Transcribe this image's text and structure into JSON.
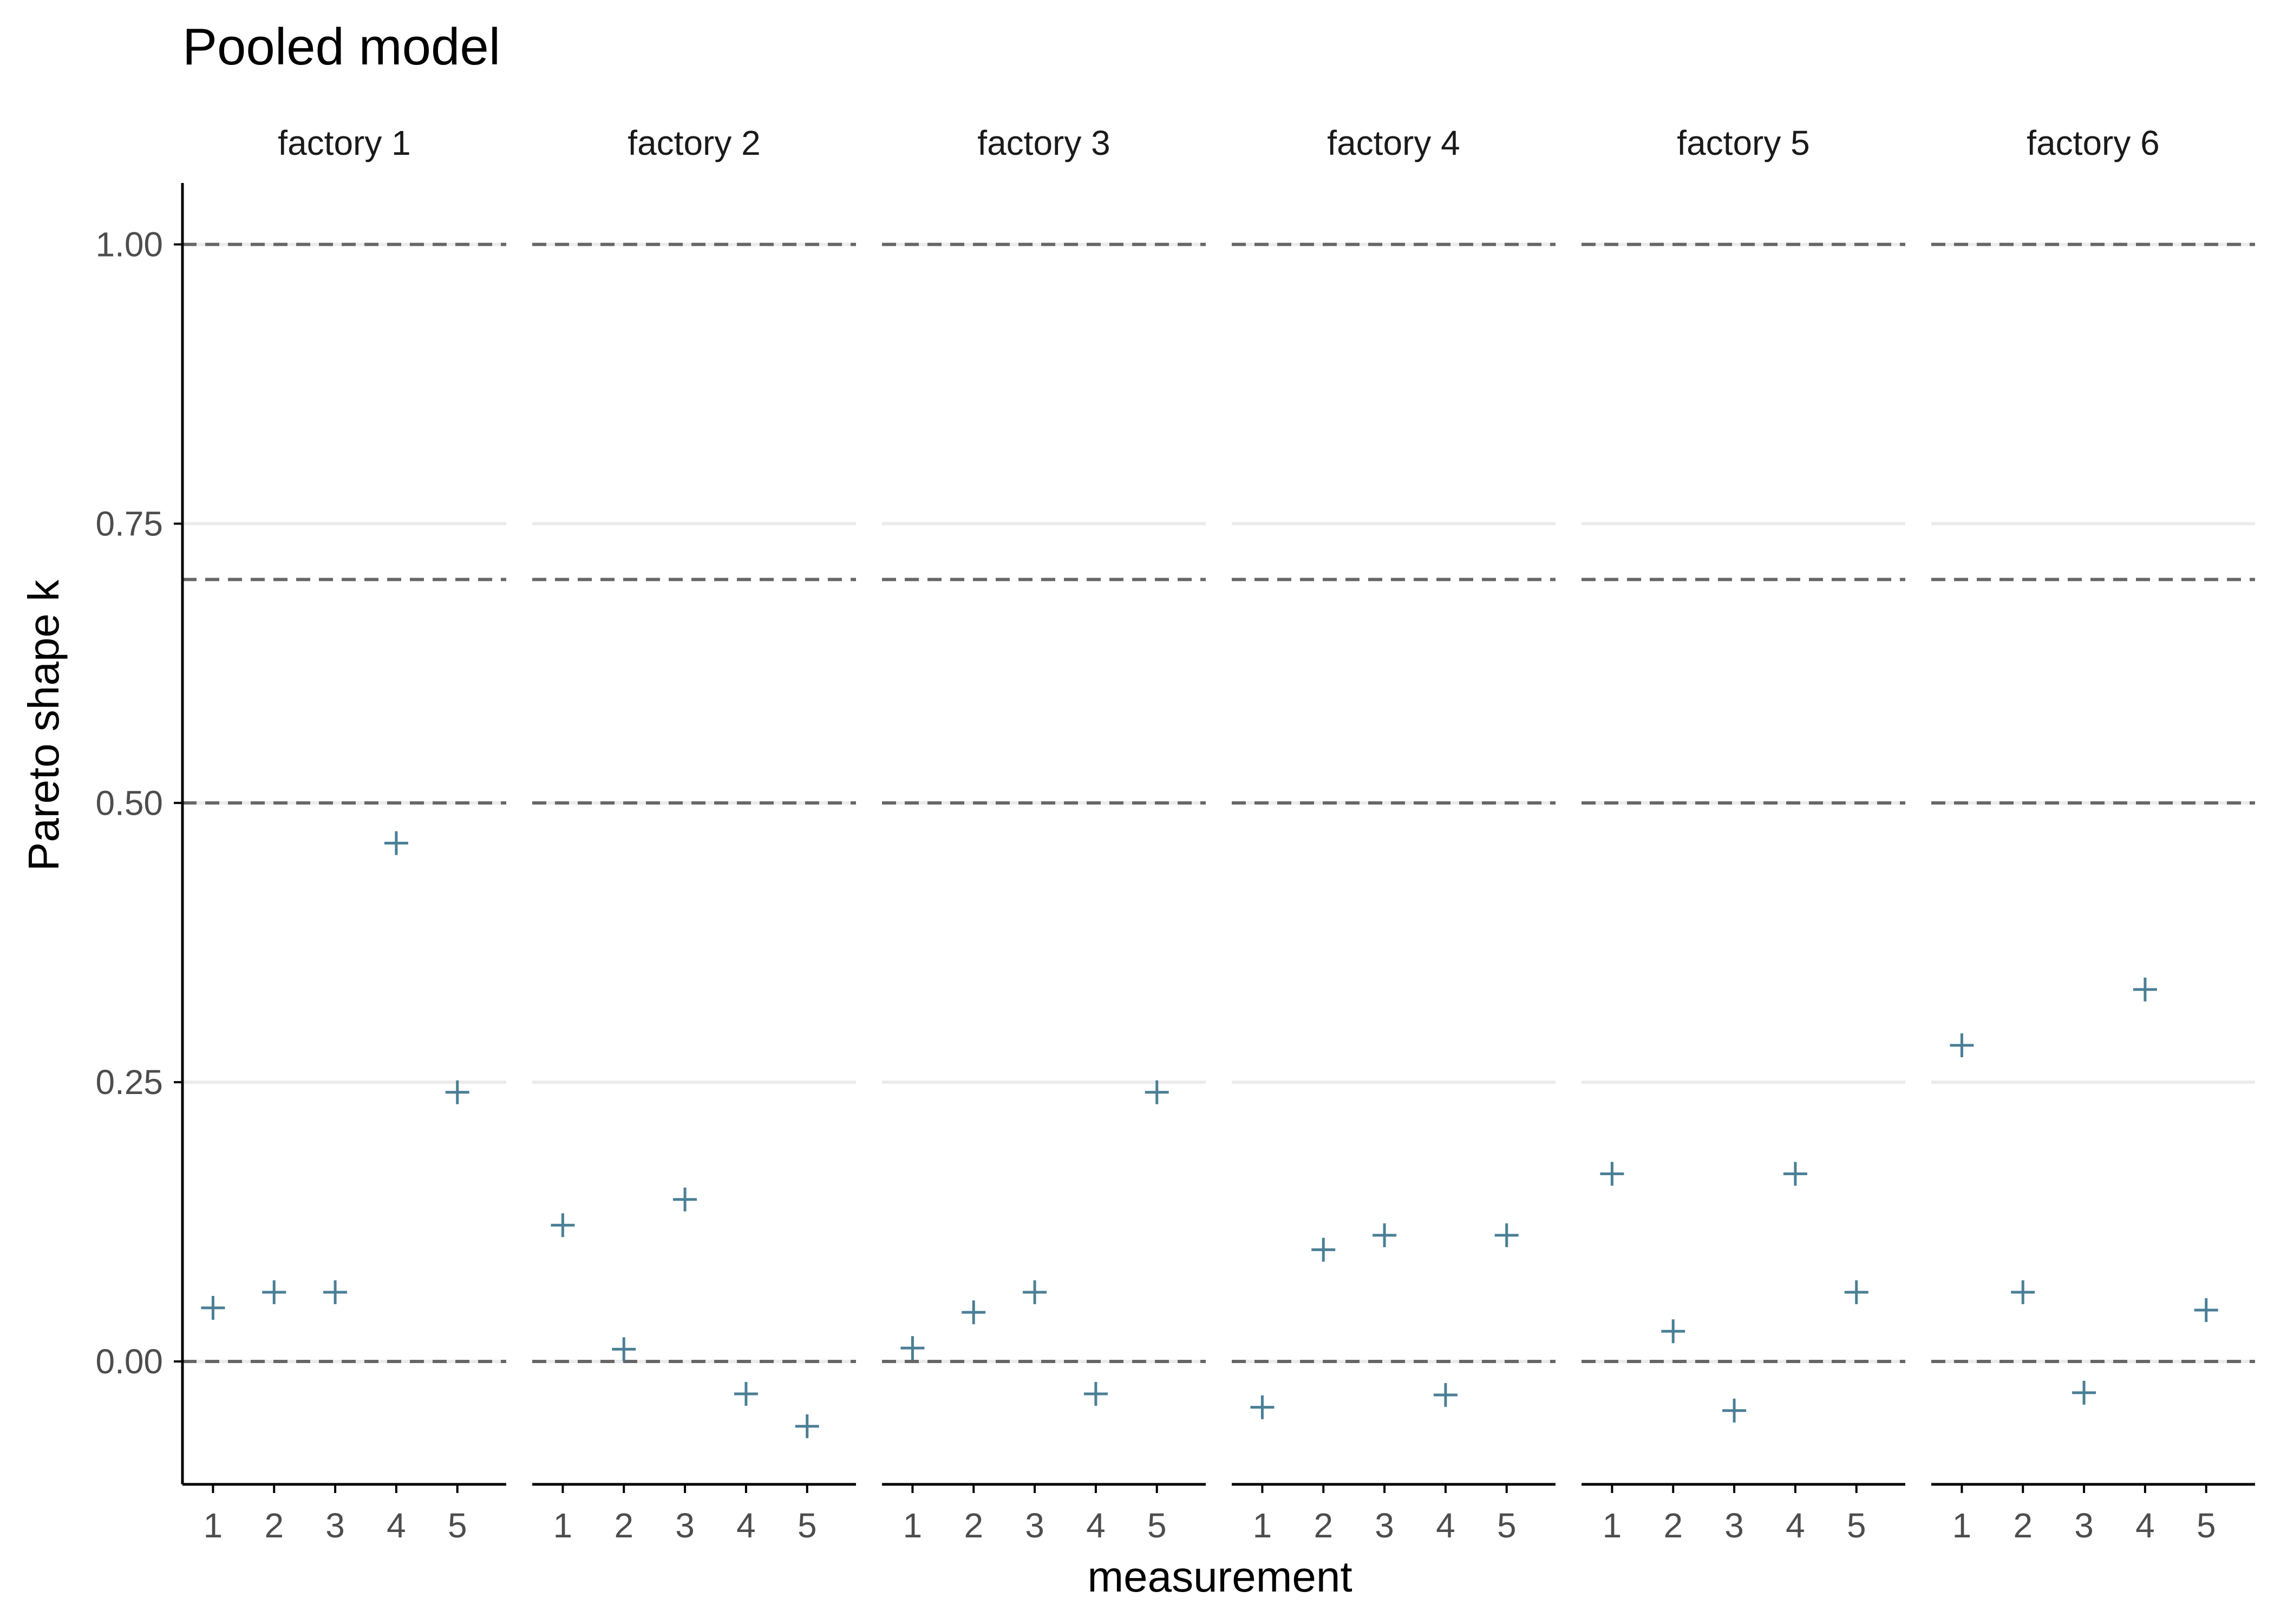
{
  "chart_data": {
    "type": "scatter",
    "title": "Pooled model",
    "xlabel": "measurement",
    "ylabel": "Pareto shape k",
    "ylim": [
      -0.11,
      1.055
    ],
    "yticks": [
      0.0,
      0.25,
      0.5,
      0.75,
      1.0
    ],
    "ytick_labels": [
      "0.00",
      "0.25",
      "0.50",
      "0.75",
      "1.00"
    ],
    "xticks": [
      1,
      2,
      3,
      4,
      5
    ],
    "xtick_labels": [
      "1",
      "2",
      "3",
      "4",
      "5"
    ],
    "reference_lines": [
      0.0,
      0.5,
      0.7,
      1.0
    ],
    "grid": true,
    "marker": "plus",
    "marker_color": "#4a7f96",
    "facets": [
      {
        "label": "factory 1",
        "x": [
          1,
          2,
          3,
          4,
          5
        ],
        "y": [
          0.048,
          0.062,
          0.062,
          0.464,
          0.241
        ]
      },
      {
        "label": "factory 2",
        "x": [
          1,
          2,
          3,
          4,
          5
        ],
        "y": [
          0.122,
          0.011,
          0.145,
          -0.029,
          -0.058
        ]
      },
      {
        "label": "factory 3",
        "x": [
          1,
          2,
          3,
          4,
          5
        ],
        "y": [
          0.012,
          0.044,
          0.062,
          -0.029,
          0.241
        ]
      },
      {
        "label": "factory 4",
        "x": [
          1,
          2,
          3,
          4,
          5
        ],
        "y": [
          -0.041,
          0.1,
          0.113,
          -0.03,
          0.113
        ]
      },
      {
        "label": "factory 5",
        "x": [
          1,
          2,
          3,
          4,
          5
        ],
        "y": [
          0.168,
          0.027,
          -0.044,
          0.168,
          0.062
        ]
      },
      {
        "label": "factory 6",
        "x": [
          1,
          2,
          3,
          4,
          5
        ],
        "y": [
          0.283,
          0.062,
          -0.028,
          0.333,
          0.046
        ]
      }
    ]
  }
}
